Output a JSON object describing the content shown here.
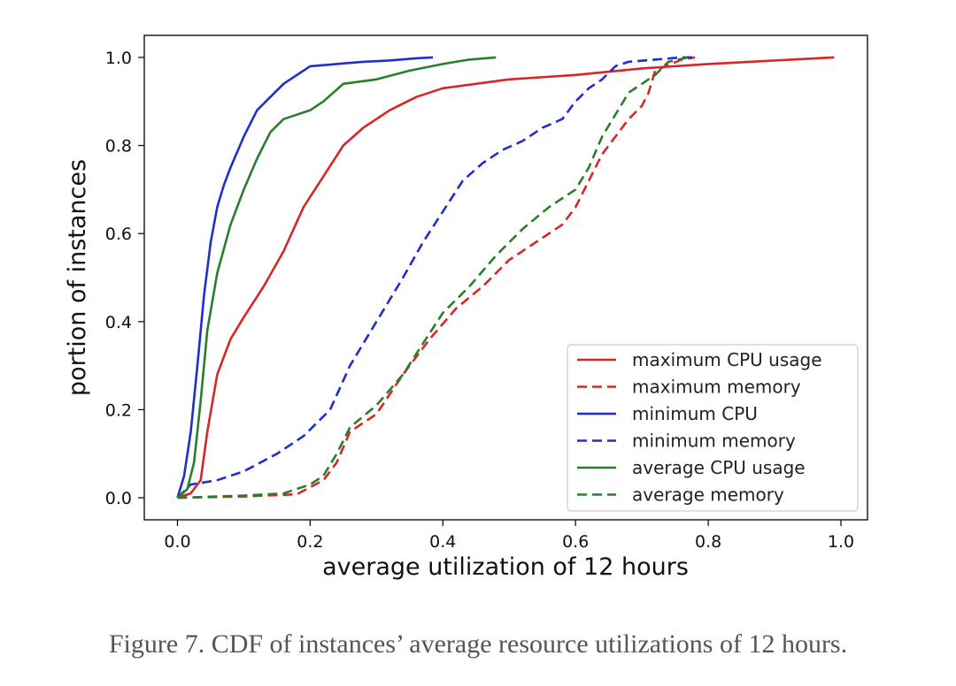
{
  "caption": "Figure 7.    CDF of instances’ average resource utilizations of 12 hours.",
  "chart_data": {
    "type": "line",
    "xlabel": "average utilization of 12 hours",
    "ylabel": "portion of instances",
    "xlim": [
      -0.05,
      1.04
    ],
    "ylim": [
      -0.05,
      1.05
    ],
    "xticks": [
      0.0,
      0.2,
      0.4,
      0.6,
      0.8,
      1.0
    ],
    "yticks": [
      0.0,
      0.2,
      0.4,
      0.6,
      0.8,
      1.0
    ],
    "xtick_labels": [
      "0.0",
      "0.2",
      "0.4",
      "0.6",
      "0.8",
      "1.0"
    ],
    "ytick_labels": [
      "0.0",
      "0.2",
      "0.4",
      "0.6",
      "0.8",
      "1.0"
    ],
    "grid": false,
    "legend_position": "lower-right",
    "series": [
      {
        "name": "maximum CPU usage",
        "color": "#d62728",
        "dashed": false,
        "x": [
          0.0,
          0.02,
          0.035,
          0.045,
          0.06,
          0.08,
          0.1,
          0.13,
          0.16,
          0.19,
          0.22,
          0.25,
          0.28,
          0.32,
          0.36,
          0.4,
          0.45,
          0.5,
          0.6,
          0.7,
          0.8,
          0.9,
          0.99
        ],
        "y": [
          0.0,
          0.01,
          0.04,
          0.15,
          0.28,
          0.36,
          0.41,
          0.48,
          0.56,
          0.66,
          0.73,
          0.8,
          0.84,
          0.88,
          0.91,
          0.93,
          0.94,
          0.95,
          0.96,
          0.975,
          0.985,
          0.993,
          1.0
        ]
      },
      {
        "name": "maximum memory",
        "color": "#d62728",
        "dashed": true,
        "x": [
          0.0,
          0.1,
          0.18,
          0.22,
          0.24,
          0.26,
          0.3,
          0.34,
          0.38,
          0.42,
          0.46,
          0.5,
          0.54,
          0.58,
          0.6,
          0.62,
          0.64,
          0.66,
          0.68,
          0.7,
          0.71,
          0.72,
          0.76,
          0.78
        ],
        "y": [
          0.0,
          0.003,
          0.008,
          0.04,
          0.08,
          0.15,
          0.19,
          0.28,
          0.36,
          0.43,
          0.48,
          0.54,
          0.58,
          0.62,
          0.66,
          0.72,
          0.78,
          0.82,
          0.86,
          0.89,
          0.92,
          0.97,
          0.995,
          1.0
        ]
      },
      {
        "name": "minimum CPU",
        "color": "#1f2fcf",
        "dashed": false,
        "x": [
          0.0,
          0.01,
          0.02,
          0.03,
          0.04,
          0.05,
          0.06,
          0.07,
          0.08,
          0.1,
          0.12,
          0.14,
          0.16,
          0.18,
          0.2,
          0.24,
          0.28,
          0.32,
          0.36,
          0.385
        ],
        "y": [
          0.0,
          0.05,
          0.15,
          0.3,
          0.46,
          0.58,
          0.66,
          0.71,
          0.75,
          0.82,
          0.88,
          0.91,
          0.94,
          0.96,
          0.98,
          0.985,
          0.99,
          0.993,
          0.998,
          1.0
        ]
      },
      {
        "name": "minimum memory",
        "color": "#1f2fcf",
        "dashed": true,
        "x": [
          0.0,
          0.02,
          0.06,
          0.1,
          0.15,
          0.19,
          0.23,
          0.26,
          0.3,
          0.34,
          0.37,
          0.4,
          0.43,
          0.46,
          0.49,
          0.52,
          0.55,
          0.58,
          0.6,
          0.62,
          0.64,
          0.66,
          0.68,
          0.72,
          0.76,
          0.78
        ],
        "y": [
          0.0,
          0.03,
          0.04,
          0.06,
          0.1,
          0.14,
          0.2,
          0.3,
          0.4,
          0.5,
          0.58,
          0.65,
          0.72,
          0.76,
          0.79,
          0.81,
          0.84,
          0.86,
          0.9,
          0.93,
          0.95,
          0.98,
          0.99,
          0.995,
          1.0,
          1.0
        ]
      },
      {
        "name": "average CPU usage",
        "color": "#2a7d2a",
        "dashed": false,
        "x": [
          0.0,
          0.015,
          0.025,
          0.035,
          0.045,
          0.06,
          0.08,
          0.1,
          0.12,
          0.14,
          0.16,
          0.18,
          0.2,
          0.22,
          0.25,
          0.3,
          0.35,
          0.4,
          0.44,
          0.48
        ],
        "y": [
          0.0,
          0.02,
          0.08,
          0.22,
          0.38,
          0.51,
          0.62,
          0.7,
          0.77,
          0.83,
          0.86,
          0.87,
          0.88,
          0.9,
          0.94,
          0.95,
          0.97,
          0.985,
          0.995,
          1.0
        ]
      },
      {
        "name": "average memory",
        "color": "#2a7d2a",
        "dashed": true,
        "x": [
          0.0,
          0.1,
          0.16,
          0.2,
          0.22,
          0.24,
          0.26,
          0.3,
          0.34,
          0.37,
          0.4,
          0.44,
          0.48,
          0.52,
          0.56,
          0.6,
          0.62,
          0.64,
          0.66,
          0.68,
          0.7,
          0.72,
          0.74,
          0.77
        ],
        "y": [
          0.0,
          0.005,
          0.01,
          0.03,
          0.05,
          0.1,
          0.16,
          0.21,
          0.28,
          0.35,
          0.42,
          0.48,
          0.55,
          0.61,
          0.66,
          0.7,
          0.75,
          0.82,
          0.87,
          0.92,
          0.94,
          0.96,
          0.99,
          1.0
        ]
      }
    ]
  }
}
